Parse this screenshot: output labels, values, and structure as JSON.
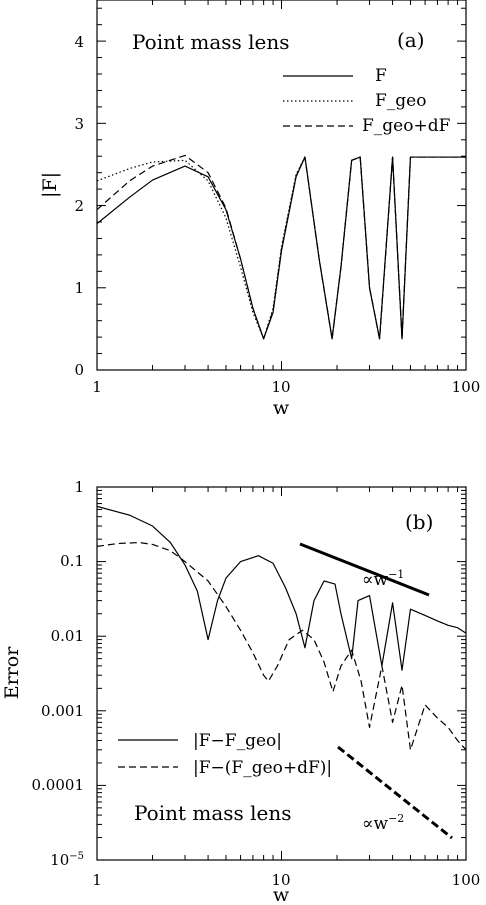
{
  "figure": {
    "panels": [
      {
        "id": "a",
        "panel_label": "(a)",
        "annotation": "Point mass lens",
        "xlabel": "w",
        "ylabel": "|F|",
        "xticklabels": [
          "1",
          "10",
          "100"
        ],
        "yticklabels": [
          "0",
          "1",
          "2",
          "3",
          "4"
        ],
        "legend": [
          {
            "label": "F",
            "style": "solid"
          },
          {
            "label": "F_geo",
            "style": "dotted"
          },
          {
            "label": "F_geo+dF",
            "style": "dashed"
          }
        ]
      },
      {
        "id": "b",
        "panel_label": "(b)",
        "annotation": "Point mass lens",
        "xlabel": "w",
        "ylabel": "Error",
        "xticklabels": [
          "1",
          "10",
          "100"
        ],
        "yticklabels": [
          "10^-5",
          "0.0001",
          "0.001",
          "0.01",
          "0.1",
          "1"
        ],
        "legend": [
          {
            "label": "|F−F_geo|",
            "style": "solid"
          },
          {
            "label": "|F−(F_geo+dF)|",
            "style": "dashed"
          }
        ],
        "slope_labels": [
          "∝w^-1",
          "∝w^-2"
        ]
      }
    ]
  },
  "chart_data": [
    {
      "type": "line",
      "title": "",
      "xlabel": "w",
      "ylabel": "|F|",
      "xscale": "log",
      "xlim": [
        1,
        100
      ],
      "ylim": [
        0,
        4.5
      ],
      "annotations": [
        "(a)",
        "Point mass lens"
      ],
      "legend_position": "top-right",
      "series": [
        {
          "name": "F",
          "style": "solid",
          "x": [
            1,
            1.5,
            2,
            3,
            4,
            5,
            6,
            7,
            8,
            9,
            10,
            12,
            13.4,
            16,
            18.8,
            21,
            24,
            26.7,
            30,
            34,
            40,
            45,
            50,
            60,
            70,
            80,
            90,
            100
          ],
          "y": [
            1.78,
            2.1,
            2.31,
            2.48,
            2.35,
            1.95,
            1.35,
            0.75,
            0.38,
            0.7,
            1.45,
            2.35,
            2.59,
            1.35,
            0.38,
            1.25,
            2.55,
            2.59,
            1.0,
            0.38,
            2.59,
            0.38,
            2.59,
            2.59,
            2.59,
            2.59,
            2.59,
            2.59
          ]
        },
        {
          "name": "F_geo",
          "style": "dotted",
          "x": [
            1,
            1.5,
            2,
            3,
            4,
            5,
            6,
            7,
            8,
            9,
            10,
            12,
            13.4,
            16,
            18.8,
            21,
            24,
            26.7,
            30,
            34,
            40,
            45,
            50,
            60,
            70,
            80,
            90,
            100
          ],
          "y": [
            2.3,
            2.45,
            2.53,
            2.55,
            2.3,
            1.85,
            1.25,
            0.7,
            0.38,
            0.75,
            1.5,
            2.38,
            2.59,
            1.35,
            0.38,
            1.25,
            2.55,
            2.59,
            1.0,
            0.38,
            2.59,
            0.38,
            2.59,
            2.59,
            2.59,
            2.59,
            2.59,
            2.59
          ]
        },
        {
          "name": "F_geo+dF",
          "style": "dashed",
          "x": [
            1,
            1.5,
            2,
            3,
            4,
            5,
            6,
            7,
            8,
            9,
            10,
            12,
            13.4,
            16,
            18.8,
            21,
            24,
            26.7,
            30,
            34,
            40,
            45,
            50,
            60,
            70,
            80,
            90,
            100
          ],
          "y": [
            1.95,
            2.3,
            2.48,
            2.61,
            2.4,
            1.97,
            1.35,
            0.75,
            0.38,
            0.72,
            1.47,
            2.36,
            2.59,
            1.35,
            0.38,
            1.25,
            2.55,
            2.59,
            1.0,
            0.38,
            2.59,
            0.38,
            2.59,
            2.59,
            2.59,
            2.59,
            2.59,
            2.59
          ]
        }
      ]
    },
    {
      "type": "line",
      "title": "",
      "xlabel": "w",
      "ylabel": "Error",
      "xscale": "log",
      "yscale": "log",
      "xlim": [
        1,
        100
      ],
      "ylim": [
        1e-05,
        1
      ],
      "annotations": [
        "(b)",
        "Point mass lens",
        "∝w^-1",
        "∝w^-2"
      ],
      "legend_position": "bottom-left",
      "series": [
        {
          "name": "|F−F_geo|",
          "style": "solid",
          "x": [
            1,
            1.5,
            2,
            2.5,
            3,
            3.5,
            4,
            4.5,
            5,
            6,
            7.5,
            9,
            10.5,
            12,
            13.4,
            15,
            17,
            19.5,
            21,
            24,
            26,
            30,
            35,
            40,
            45,
            50,
            60,
            70,
            80,
            90,
            100
          ],
          "y": [
            0.55,
            0.42,
            0.3,
            0.18,
            0.09,
            0.04,
            0.009,
            0.03,
            0.06,
            0.1,
            0.12,
            0.095,
            0.045,
            0.02,
            0.007,
            0.03,
            0.055,
            0.05,
            0.02,
            0.005,
            0.03,
            0.035,
            0.004,
            0.028,
            0.0035,
            0.023,
            0.019,
            0.016,
            0.014,
            0.013,
            0.011
          ]
        },
        {
          "name": "|F−(F_geo+dF)|",
          "style": "dashed",
          "x": [
            1,
            1.3,
            1.7,
            2,
            2.5,
            3,
            4,
            5,
            6,
            7,
            8,
            8.5,
            9.5,
            11,
            13,
            15,
            17,
            19,
            21,
            24,
            27,
            30,
            35,
            40,
            45,
            50,
            60,
            70,
            80,
            90,
            100
          ],
          "y": [
            0.16,
            0.175,
            0.18,
            0.17,
            0.14,
            0.1,
            0.055,
            0.025,
            0.012,
            0.006,
            0.003,
            0.0025,
            0.004,
            0.009,
            0.012,
            0.009,
            0.0045,
            0.0018,
            0.004,
            0.0065,
            0.0025,
            0.0006,
            0.004,
            0.0007,
            0.0022,
            0.0003,
            0.0012,
            0.0008,
            0.0006,
            0.0004,
            0.0003
          ]
        }
      ]
    }
  ]
}
